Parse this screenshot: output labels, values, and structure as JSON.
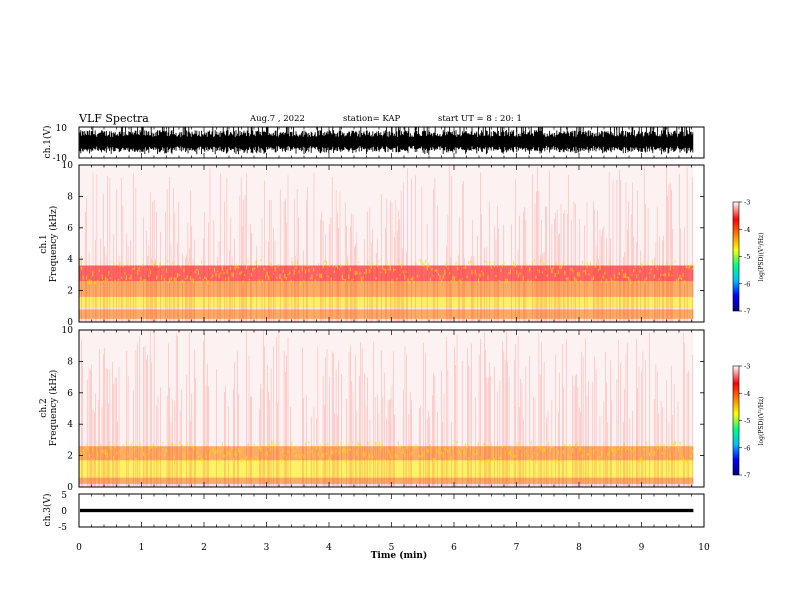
{
  "header": {
    "title": "VLF Spectra",
    "date": "Aug.7 , 2022",
    "station": "station= KAP",
    "start": "start UT =  8 : 20: 1"
  },
  "chart_data": [
    {
      "type": "line",
      "name": "ch1-waveform",
      "ylabel": "ch.1(V)",
      "ylim": [
        -10,
        10
      ],
      "y_ticks": [
        "10",
        "-10"
      ],
      "xlim": [
        0,
        10
      ],
      "data_extent_min": [
        0,
        9.83
      ],
      "amplitude_typical_v": [
        -8,
        8
      ],
      "amplitude_max_v": 10
    },
    {
      "type": "heatmap",
      "name": "ch1-spectrogram",
      "ylabel_line1": "ch.1",
      "ylabel_line2": "Frequency  (kHz)",
      "ylim": [
        0,
        10
      ],
      "y_ticks": [
        "0",
        "2",
        "4",
        "6",
        "8",
        "10"
      ],
      "xlim": [
        0,
        10
      ],
      "data_extent_min": [
        0,
        9.83
      ],
      "colorbar": {
        "label": "log(PSD)(V²/Hz)",
        "range": [
          -7,
          -3
        ],
        "ticks": [
          "-3",
          "-4",
          "-5",
          "-6",
          "-7"
        ],
        "colors": [
          "#000080",
          "#0000ff",
          "#00c0ff",
          "#00ff80",
          "#ffff00",
          "#ff8000",
          "#ff0000",
          "#ffffff"
        ]
      },
      "bands": [
        {
          "f_low_khz": 0.2,
          "f_high_khz": 0.8,
          "log_psd": -4.2
        },
        {
          "f_low_khz": 0.9,
          "f_high_khz": 1.6,
          "log_psd": -4.6
        },
        {
          "f_low_khz": 1.6,
          "f_high_khz": 2.6,
          "log_psd": -4.0
        },
        {
          "f_low_khz": 2.6,
          "f_high_khz": 3.6,
          "log_psd": -3.8
        },
        {
          "f_low_khz": 3.6,
          "f_high_khz": 10.0,
          "log_psd": -3.2
        }
      ]
    },
    {
      "type": "heatmap",
      "name": "ch2-spectrogram",
      "ylabel_line1": "ch.2",
      "ylabel_line2": "Frequency  (kHz)",
      "ylim": [
        0,
        10
      ],
      "y_ticks": [
        "0",
        "2",
        "4",
        "6",
        "8",
        "10"
      ],
      "xlim": [
        0,
        10
      ],
      "data_extent_min": [
        0,
        9.83
      ],
      "colorbar": {
        "label": "log(PSD)(V²/Hz)",
        "range": [
          -7,
          -3
        ],
        "ticks": [
          "-3",
          "-4",
          "-5",
          "-6",
          "-7"
        ],
        "colors": [
          "#000080",
          "#0000ff",
          "#00c0ff",
          "#00ff80",
          "#ffff00",
          "#ff8000",
          "#ff0000",
          "#ffffff"
        ]
      },
      "bands": [
        {
          "f_low_khz": 0.2,
          "f_high_khz": 0.6,
          "log_psd": -4.2
        },
        {
          "f_low_khz": 0.6,
          "f_high_khz": 1.7,
          "log_psd": -4.9
        },
        {
          "f_low_khz": 1.7,
          "f_high_khz": 2.6,
          "log_psd": -4.1
        },
        {
          "f_low_khz": 2.6,
          "f_high_khz": 10.0,
          "log_psd": -3.2
        }
      ]
    },
    {
      "type": "line",
      "name": "ch3-waveform",
      "ylabel": "ch.3(V)",
      "ylim": [
        -5,
        5
      ],
      "y_ticks": [
        "5",
        "0",
        "-5"
      ],
      "xlim": [
        0,
        10
      ],
      "data_extent_min": [
        0,
        9.83
      ],
      "level_v": [
        -0.5,
        0.5
      ]
    }
  ],
  "x_axis": {
    "label": "Time  (min)",
    "ticks": [
      "0",
      "1",
      "2",
      "3",
      "4",
      "5",
      "6",
      "7",
      "8",
      "9",
      "10"
    ]
  }
}
